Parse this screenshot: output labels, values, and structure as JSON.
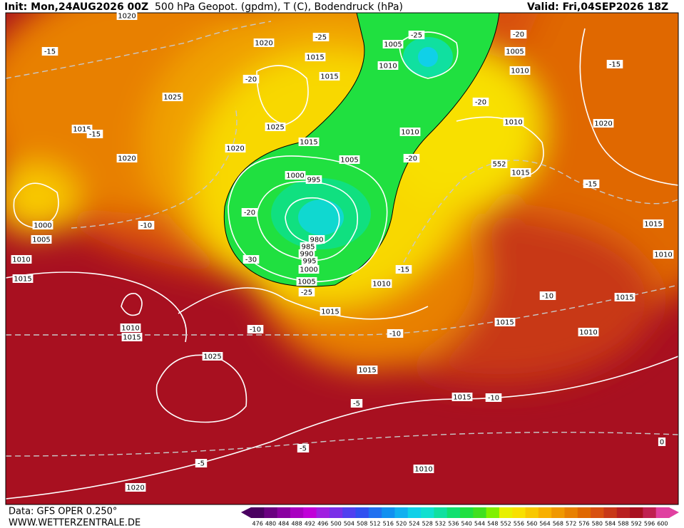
{
  "header": {
    "init": "Init: Mon,24AUG2026 00Z",
    "title": "500 hPa Geopot. (gpdm), T (C), Bodendruck (hPa)",
    "valid": "Valid: Fri,04SEP2026 18Z"
  },
  "footer": {
    "source": "Data: GFS OPER 0.250°",
    "site": "WWW.WETTERZENTRALE.DE"
  },
  "colorbar": {
    "ticks": [
      476,
      480,
      484,
      488,
      492,
      496,
      500,
      504,
      508,
      512,
      516,
      520,
      524,
      528,
      532,
      536,
      540,
      544,
      548,
      552,
      556,
      560,
      564,
      568,
      572,
      576,
      580,
      584,
      588,
      592,
      596,
      600
    ],
    "colors": [
      "#4a0060",
      "#6a0080",
      "#8a00a0",
      "#a800c0",
      "#c000d8",
      "#a020e0",
      "#7a30e8",
      "#5040f0",
      "#3050f0",
      "#2070f0",
      "#1090f0",
      "#10b0f0",
      "#10d0e8",
      "#10e0d0",
      "#10e0a0",
      "#10e070",
      "#20e040",
      "#40e020",
      "#80f000",
      "#e8f000",
      "#f8e000",
      "#f8c800",
      "#f8b000",
      "#f09800",
      "#e88000",
      "#e06800",
      "#d85010",
      "#c83818",
      "#b82020",
      "#a81020",
      "#c02050",
      "#e040a0"
    ]
  },
  "map_labels": [
    "1020",
    "-15",
    "1020",
    "-25",
    "1015",
    "1015",
    "-20",
    "1025",
    "1015",
    "-15",
    "1025",
    "1020",
    "1020",
    "1015",
    "1005",
    "1000",
    "995",
    "-20",
    "-10",
    "1000",
    "1005",
    "980",
    "985",
    "990",
    "995",
    "1000",
    "1005",
    "-25",
    "1010",
    "1015",
    "-30",
    "1010",
    "-15",
    "1015",
    "1010",
    "1015",
    "-10",
    "1025",
    "-10",
    "1015",
    "-5",
    "1015",
    "-10",
    "-5",
    "-5",
    "1010",
    "1020",
    "0",
    "1010",
    "1015",
    "-10",
    "1015",
    "1010",
    "1015",
    "-15",
    "1015",
    "552",
    "1010",
    "1020",
    "-15",
    "-20",
    "1010",
    "-20",
    "1010",
    "1005",
    "-20",
    "-25",
    "1005",
    "1010"
  ]
}
